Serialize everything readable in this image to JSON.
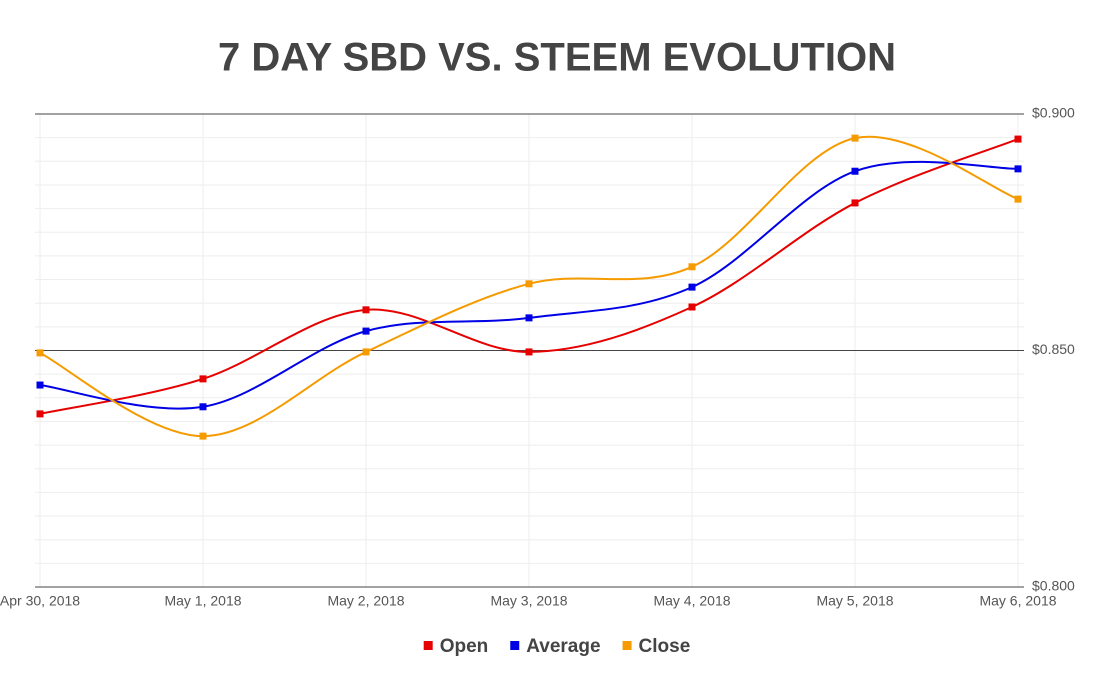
{
  "chart_data": {
    "type": "line",
    "title": "7 DAY SBD VS. STEEM EVOLUTION",
    "categories": [
      "Apr 30, 2018",
      "May 1, 2018",
      "May 2, 2018",
      "May 3, 2018",
      "May 4, 2018",
      "May 5, 2018",
      "May 6, 2018"
    ],
    "series": [
      {
        "name": "Open",
        "color": "#e60000",
        "values": [
          0.8366,
          0.844,
          0.8586,
          0.8497,
          0.8592,
          0.8812,
          0.8947
        ]
      },
      {
        "name": "Average",
        "color": "#0000e6",
        "values": [
          0.8427,
          0.8381,
          0.8541,
          0.8569,
          0.8634,
          0.8879,
          0.8884
        ]
      },
      {
        "name": "Close",
        "color": "#f59b00",
        "values": [
          0.8495,
          0.8319,
          0.8497,
          0.8641,
          0.8677,
          0.8949,
          0.882
        ]
      }
    ],
    "ylim": [
      0.8,
      0.9
    ],
    "yticks": [
      {
        "value": 0.8,
        "label": "$0.800"
      },
      {
        "value": 0.85,
        "label": "$0.850"
      },
      {
        "value": 0.9,
        "label": "$0.900"
      }
    ],
    "grid": true,
    "smooth": true,
    "legend": "bottom"
  }
}
